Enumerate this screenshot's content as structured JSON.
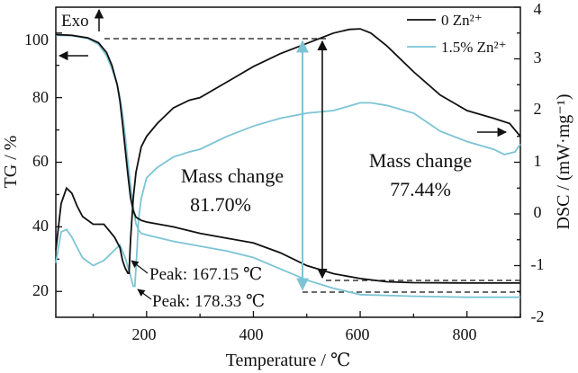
{
  "chart_data": {
    "type": "line",
    "xlabel": "Temperature / ℃",
    "ylabel_left": "TG / %",
    "ylabel_right": "DSC / (mW·mg⁻¹)",
    "xlim": [
      30,
      900
    ],
    "ylim_left": [
      12,
      108
    ],
    "ylim_right": [
      -2,
      4
    ],
    "x_ticks": [
      200,
      400,
      600,
      800
    ],
    "y_ticks_left": [
      20,
      40,
      60,
      80,
      100
    ],
    "y_ticks_right": [
      -2,
      -1,
      0,
      1,
      2,
      3,
      4
    ],
    "grid": false,
    "legend_position": "top-right",
    "colors": {
      "zn0": "#111111",
      "zn15": "#7cc4d4"
    },
    "series": [
      {
        "name": "0 Zn²⁺",
        "color": "#111111",
        "tg": {
          "x": [
            30,
            60,
            90,
            110,
            125,
            135,
            145,
            150,
            155,
            160,
            165,
            170,
            175,
            180,
            190,
            200,
            250,
            300,
            350,
            400,
            450,
            500,
            550,
            600,
            650,
            700,
            800,
            900
          ],
          "y": [
            99.5,
            99.3,
            98.5,
            97,
            94,
            90,
            84,
            79,
            72,
            64,
            56,
            49,
            45,
            43,
            42,
            41.5,
            40,
            38,
            36.5,
            35,
            32,
            28,
            25.5,
            24,
            23,
            22.7,
            22.6,
            22.6
          ]
        },
        "dsc": {
          "x": [
            30,
            40,
            50,
            60,
            70,
            80,
            100,
            120,
            140,
            150,
            155,
            160,
            165,
            167,
            170,
            175,
            180,
            190,
            200,
            220,
            250,
            280,
            300,
            350,
            400,
            450,
            500,
            550,
            580,
            600,
            620,
            650,
            700,
            750,
            800,
            850,
            880,
            900
          ],
          "y": [
            -0.7,
            0.2,
            0.5,
            0.4,
            0.15,
            -0.05,
            -0.2,
            -0.2,
            -0.45,
            -0.65,
            -0.9,
            -1.05,
            -1.15,
            -1.15,
            -0.5,
            0.3,
            0.8,
            1.3,
            1.5,
            1.75,
            2.05,
            2.2,
            2.25,
            2.55,
            2.85,
            3.1,
            3.3,
            3.5,
            3.57,
            3.58,
            3.5,
            3.25,
            2.75,
            2.3,
            2.0,
            1.85,
            1.75,
            1.5
          ]
        }
      },
      {
        "name": "1.5% Zn²⁺",
        "color": "#7cc4d4",
        "tg": {
          "x": [
            30,
            60,
            90,
            110,
            125,
            135,
            145,
            150,
            155,
            160,
            165,
            170,
            175,
            180,
            185,
            190,
            200,
            250,
            300,
            350,
            400,
            450,
            500,
            550,
            600,
            700,
            800,
            900
          ],
          "y": [
            99.3,
            99.2,
            98.3,
            96.5,
            93,
            89,
            84,
            80,
            75,
            68,
            60,
            53,
            46,
            41,
            39,
            38,
            37.5,
            35.5,
            34,
            32.5,
            30.5,
            27,
            23.5,
            21,
            19,
            18.5,
            18.2,
            18.2
          ]
        },
        "dsc": {
          "x": [
            30,
            40,
            50,
            60,
            70,
            80,
            100,
            120,
            140,
            150,
            160,
            170,
            175,
            178,
            182,
            185,
            190,
            200,
            220,
            250,
            280,
            300,
            350,
            400,
            450,
            500,
            550,
            600,
            620,
            650,
            700,
            750,
            800,
            850,
            870,
            890,
            900
          ],
          "y": [
            -0.95,
            -0.35,
            -0.3,
            -0.45,
            -0.65,
            -0.85,
            -1.0,
            -0.9,
            -0.7,
            -0.6,
            -0.85,
            -1.2,
            -1.4,
            -1.4,
            -0.7,
            -0.1,
            0.3,
            0.7,
            0.9,
            1.1,
            1.2,
            1.25,
            1.5,
            1.7,
            1.85,
            1.95,
            2.0,
            2.15,
            2.15,
            2.1,
            1.95,
            1.6,
            1.4,
            1.25,
            1.15,
            1.2,
            1.35
          ]
        }
      }
    ],
    "annotations": {
      "exo": "Exo",
      "peak_1": "Peak: 167.15 ℃",
      "peak_2": "Peak: 178.33 ℃",
      "mass_change_left_1": "Mass change",
      "mass_change_left_2": "81.70%",
      "mass_change_right_1": "Mass change",
      "mass_change_right_2": "77.44%"
    }
  }
}
